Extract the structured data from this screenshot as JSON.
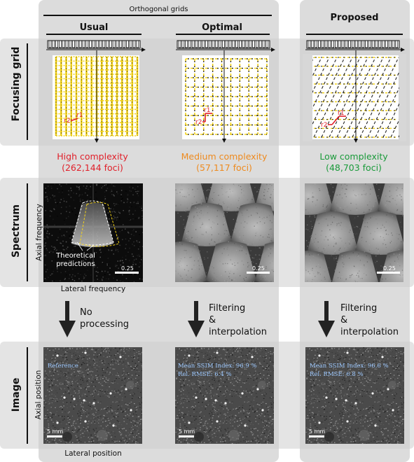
{
  "header": {
    "group_title": "Orthogonal grids"
  },
  "columns": {
    "usual": "Usual",
    "optimal": "Optimal",
    "proposed": "Proposed"
  },
  "rows": {
    "focusing_grid": "Focusing grid",
    "spectrum": "Spectrum",
    "image": "Image"
  },
  "complexity": {
    "usual": {
      "label": "High complexity",
      "foci": "(262,144 foci)",
      "color": "#e0202a"
    },
    "optimal": {
      "label": "Medium complexity",
      "foci": "(57,117 foci)",
      "color": "#ee8a1e"
    },
    "proposed": {
      "label": "Low complexity",
      "foci": "(48,703 foci)",
      "color": "#1a9a3a"
    }
  },
  "grid_labels": {
    "r1": "r",
    "r2": "r",
    "sub1": "1",
    "sub2": "2"
  },
  "spectrum": {
    "ylabel": "Axial frequency",
    "xlabel": "Lateral frequency",
    "scale": "0.25",
    "annotation": "Theoretical\npredictions"
  },
  "processing": {
    "usual": "No\nprocessing",
    "optimal": "Filtering\n&\ninterpolation",
    "proposed": "Filtering\n&\ninterpolation"
  },
  "image_row": {
    "ylabel": "Axial position",
    "xlabel": "Lateral position",
    "scale": "5 mm",
    "usual_text": "Reference",
    "optimal_ssim": "Mean SSIM Index: 96.9 %",
    "optimal_rmse": "Rel. RMSE: 6.4 %",
    "proposed_ssim": "Mean SSIM Index: 96.6 %",
    "proposed_rmse": "Rel. RMSE: 6.8 %"
  },
  "colors": {
    "yellow": "#f2d21a",
    "red": "#e0202a",
    "metric_text": "#9ec9ff"
  }
}
